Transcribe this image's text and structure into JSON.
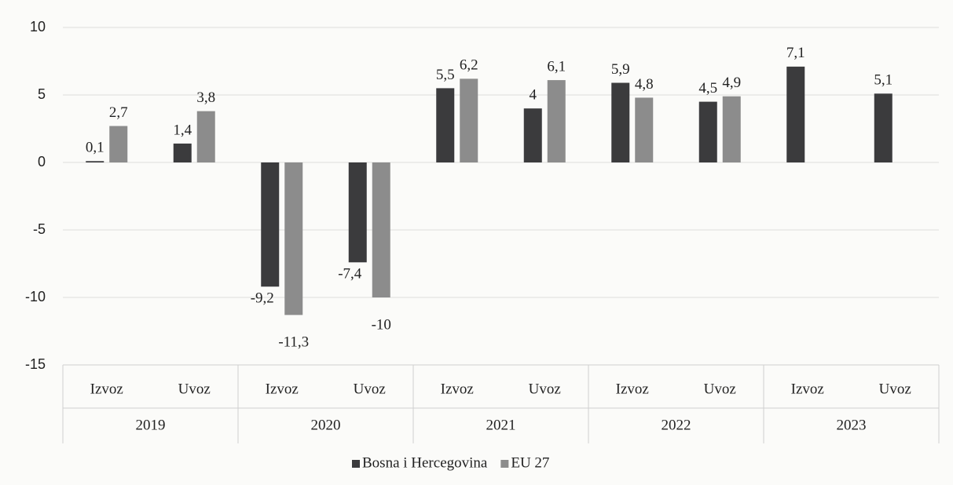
{
  "chart_data": {
    "type": "bar",
    "categories": [
      "Izvoz",
      "Uvoz",
      "Izvoz",
      "Uvoz",
      "Izvoz",
      "Uvoz",
      "Izvoz",
      "Uvoz",
      "Izvoz",
      "Uvoz"
    ],
    "groups": [
      "2019",
      "2020",
      "2021",
      "2022",
      "2023"
    ],
    "series": [
      {
        "name": "Bosna i Hercegovina",
        "color": "#3b3b3d",
        "values": [
          0.1,
          1.4,
          -9.2,
          -7.4,
          5.5,
          4,
          5.9,
          4.5,
          7.1,
          5.1
        ],
        "value_labels": [
          "0,1",
          "1,4",
          "-9,2",
          "-7,4",
          "5,5",
          "4",
          "5,9",
          "4,5",
          "7,1",
          "5,1"
        ]
      },
      {
        "name": "EU 27",
        "color": "#8c8c8c",
        "values": [
          2.7,
          3.8,
          -11.3,
          -10,
          6.2,
          6.1,
          4.8,
          4.9,
          null,
          null
        ],
        "value_labels": [
          "2,7",
          "3,8",
          "-11,3",
          "-10",
          "6,2",
          "6,1",
          "4,8",
          "4,9",
          null,
          null
        ]
      }
    ],
    "ylim": [
      -15,
      10
    ],
    "yticks": [
      -15,
      -10,
      -5,
      0,
      5,
      10
    ],
    "grid": true,
    "legend": "bottom"
  }
}
